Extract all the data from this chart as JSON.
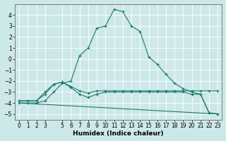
{
  "xlabel": "Humidex (Indice chaleur)",
  "background_color": "#cde8e8",
  "grid_color": "#b0d8d8",
  "line_color": "#1a7a6e",
  "xlim": [
    -0.5,
    23.5
  ],
  "ylim": [
    -5.5,
    5.0
  ],
  "xticks": [
    0,
    1,
    2,
    3,
    5,
    6,
    7,
    8,
    9,
    10,
    11,
    12,
    13,
    14,
    15,
    16,
    17,
    18,
    19,
    20,
    21,
    22,
    23
  ],
  "yticks": [
    -5,
    -4,
    -3,
    -2,
    -1,
    0,
    1,
    2,
    3,
    4
  ],
  "series": [
    {
      "x": [
        0,
        1,
        2,
        3,
        4,
        5,
        6,
        7,
        8,
        9,
        10,
        11,
        12,
        13,
        14,
        15,
        16,
        17,
        18,
        19,
        20,
        21,
        22,
        23
      ],
      "y": [
        -4.0,
        -4.0,
        -4.0,
        -3.8,
        -3.0,
        -2.2,
        -2.0,
        0.3,
        1.0,
        2.8,
        3.0,
        4.5,
        4.3,
        3.0,
        2.5,
        0.2,
        -0.5,
        -1.4,
        -2.2,
        -2.7,
        -3.0,
        -3.2,
        -4.9,
        -5.0
      ],
      "marker": true
    },
    {
      "x": [
        0,
        1,
        2,
        3,
        4,
        5,
        6,
        7,
        8,
        9,
        10,
        11,
        12,
        13,
        14,
        15,
        16,
        17,
        18,
        19,
        20,
        21,
        22,
        23
      ],
      "y": [
        -3.8,
        -3.8,
        -3.8,
        -3.2,
        -2.3,
        -2.1,
        -2.5,
        -2.9,
        -3.1,
        -2.9,
        -2.9,
        -2.9,
        -2.9,
        -2.9,
        -2.9,
        -2.9,
        -2.9,
        -2.9,
        -2.9,
        -2.9,
        -2.9,
        -2.9,
        -2.9,
        -2.9
      ],
      "marker": true
    },
    {
      "x": [
        0,
        1,
        2,
        3,
        4,
        5,
        6,
        7,
        8,
        9,
        10,
        11,
        12,
        13,
        14,
        15,
        16,
        17,
        18,
        19,
        20,
        21,
        22,
        23
      ],
      "y": [
        -3.8,
        -3.8,
        -3.8,
        -3.0,
        -2.3,
        -2.1,
        -2.6,
        -3.2,
        -3.5,
        -3.2,
        -3.0,
        -3.0,
        -3.0,
        -3.0,
        -3.0,
        -3.0,
        -3.0,
        -3.0,
        -3.0,
        -3.0,
        -3.2,
        -3.2,
        -4.9,
        -5.0
      ],
      "marker": true
    },
    {
      "x": [
        0,
        23
      ],
      "y": [
        -4.0,
        -5.0
      ],
      "marker": false
    }
  ]
}
